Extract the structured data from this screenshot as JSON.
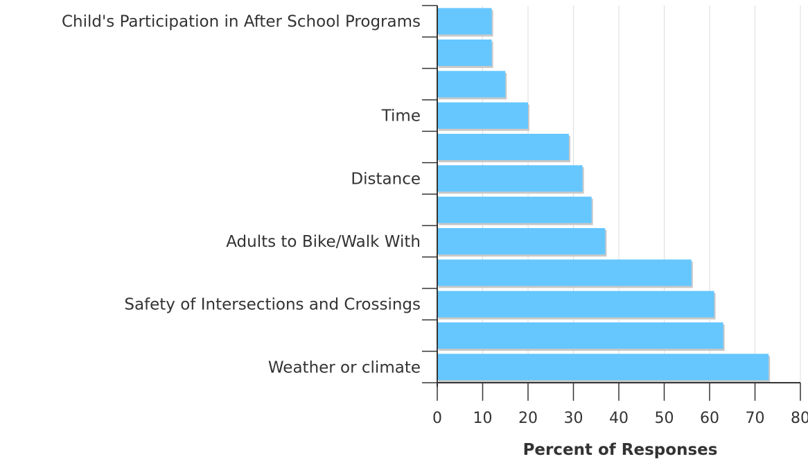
{
  "colors": {
    "bar": "#66c7ff",
    "bar_shadow": "#c8c8c8",
    "grid": "#dddddd",
    "axis": "#333333",
    "text": "#333333"
  },
  "chart_data": {
    "type": "bar",
    "orientation": "horizontal",
    "categories": [
      "Weather or climate",
      "",
      "Safety of Intersections and Crossings",
      "",
      "Adults to Bike/Walk With",
      "",
      "Distance",
      "",
      "Time",
      "",
      "",
      "Child's Participation in After School Programs"
    ],
    "values": [
      73,
      63,
      61,
      56,
      37,
      34,
      32,
      29,
      20,
      15,
      12,
      12
    ],
    "xlabel": "Percent of Responses",
    "ylabel": "",
    "xlim": [
      0,
      80
    ],
    "xticks": [
      "0",
      "10",
      "20",
      "30",
      "40",
      "50",
      "60",
      "70",
      "80"
    ],
    "grid": "vertical"
  }
}
